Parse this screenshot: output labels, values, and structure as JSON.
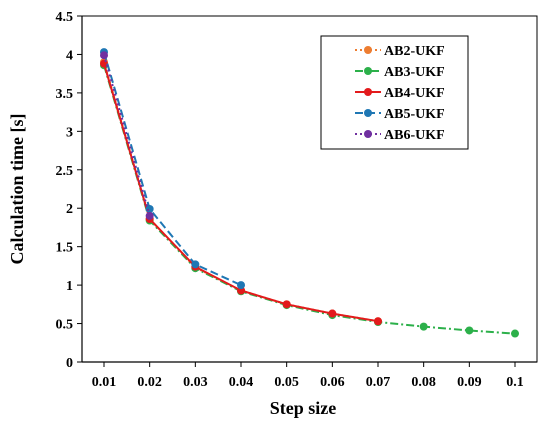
{
  "chart_data": {
    "type": "line",
    "xlabel": "Step size",
    "ylabel": "Calculation time [s]",
    "x_ticks": [
      "0.01",
      "0.02",
      "0.03",
      "0.04",
      "0.05",
      "0.06",
      "0.07",
      "0.08",
      "0.09",
      "0.1"
    ],
    "y_ticks": [
      "0",
      "0.5",
      "1",
      "1.5",
      "2",
      "2.5",
      "3",
      "3.5",
      "4",
      "4.5"
    ],
    "xlim": [
      0.01,
      0.1
    ],
    "ylim": [
      0,
      4.5
    ],
    "grid": false,
    "legend_position": "top-right",
    "series": [
      {
        "name": "AB2-UKF",
        "color": "#ED7D31",
        "line_style": "dotted",
        "x": [
          0.01,
          0.02,
          0.03,
          0.04,
          0.05,
          0.06,
          0.07
        ],
        "y": [
          3.9,
          1.86,
          1.23,
          0.93,
          0.75,
          0.63,
          0.53
        ]
      },
      {
        "name": "AB3-UKF",
        "color": "#2CB04A",
        "line_style": "dashdot",
        "x": [
          0.01,
          0.02,
          0.03,
          0.04,
          0.05,
          0.06,
          0.07,
          0.08,
          0.09,
          0.1
        ],
        "y": [
          3.86,
          1.84,
          1.22,
          0.92,
          0.74,
          0.61,
          0.52,
          0.46,
          0.41,
          0.37
        ]
      },
      {
        "name": "AB4-UKF",
        "color": "#E31A1C",
        "line_style": "solid",
        "x": [
          0.01,
          0.02,
          0.03,
          0.04,
          0.05,
          0.06,
          0.07
        ],
        "y": [
          3.88,
          1.86,
          1.24,
          0.93,
          0.75,
          0.63,
          0.53
        ]
      },
      {
        "name": "AB5-UKF",
        "color": "#1F77B4",
        "line_style": "dashed",
        "x": [
          0.01,
          0.02,
          0.03,
          0.04
        ],
        "y": [
          4.03,
          1.99,
          1.27,
          1.0
        ]
      },
      {
        "name": "AB6-UKF",
        "color": "#7030A0",
        "line_style": "dotted",
        "x": [
          0.01,
          0.02
        ],
        "y": [
          3.99,
          1.9
        ]
      }
    ]
  }
}
